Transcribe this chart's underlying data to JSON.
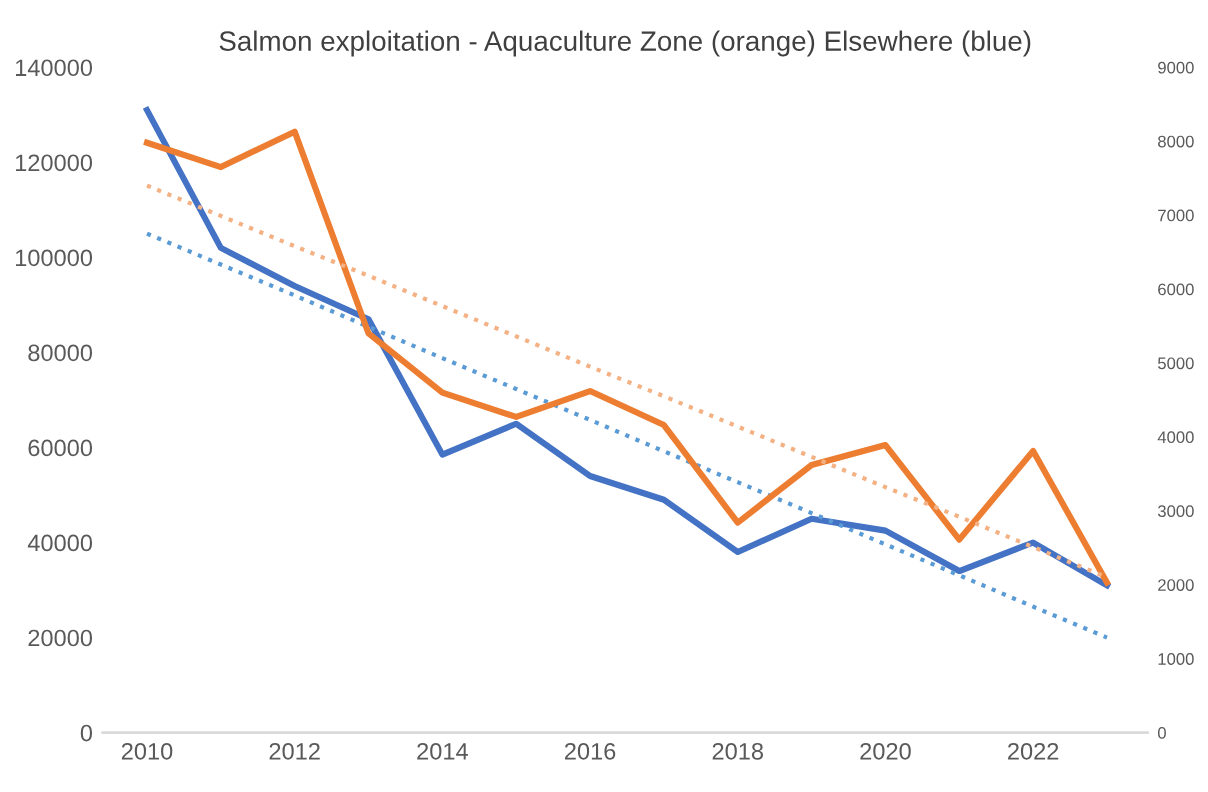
{
  "chart_data": {
    "type": "line",
    "title": "Salmon exploitation - Aquaculture Zone (orange) Elsewhere (blue)",
    "x": [
      2010,
      2011,
      2012,
      2013,
      2014,
      2015,
      2016,
      2017,
      2018,
      2019,
      2020,
      2021,
      2022,
      2023
    ],
    "series": [
      {
        "color": "#4472c4",
        "values": [
          131000,
          102000,
          94000,
          87000,
          58500,
          65000,
          54000,
          49000,
          38000,
          45000,
          42500,
          34000,
          40000,
          31000
        ]
      },
      {
        "color": "#ed7d31",
        "axis": "y2",
        "values": [
          7980,
          7650,
          8130,
          5400,
          4600,
          4270,
          4620,
          4160,
          2840,
          3620,
          3890,
          2610,
          3810,
          2030
        ]
      },
      {
        "color": "#5b9bd5",
        "line_style": "dotted",
        "values": [
          105000,
          98500,
          92000,
          85400,
          78800,
          72300,
          65800,
          59200,
          52700,
          46200,
          39600,
          33100,
          26500,
          20000
        ]
      },
      {
        "color": "#f4b183",
        "line_style": "dotted",
        "axis": "y2",
        "values": [
          7400,
          6990,
          6580,
          6180,
          5770,
          5360,
          4950,
          4550,
          4140,
          3730,
          3320,
          2920,
          2510,
          2100
        ]
      }
    ],
    "xlim": [
      2009.4,
      2023.55
    ],
    "xticks": [
      2010,
      2012,
      2014,
      2016,
      2018,
      2020,
      2022
    ],
    "ylim": [
      0,
      140000
    ],
    "yticks": [
      0,
      20000,
      40000,
      60000,
      80000,
      100000,
      120000,
      140000
    ],
    "y2lim": [
      0,
      9000
    ],
    "y2ticks": [
      0,
      1000,
      2000,
      3000,
      4000,
      5000,
      6000,
      7000,
      8000,
      9000
    ],
    "grid": false,
    "legend": false
  }
}
